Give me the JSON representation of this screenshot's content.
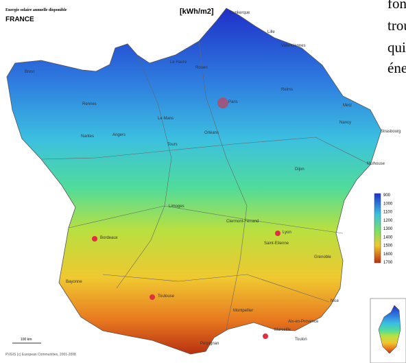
{
  "header": {
    "subtitle": "Energie solaire annuelle disponible",
    "title": "FRANCE",
    "unit": "[kWh/m2]"
  },
  "legend": {
    "ticks": [
      900,
      1000,
      1100,
      1200,
      1300,
      1400,
      1500,
      1600,
      1700
    ]
  },
  "cities": [
    "Dunkerque",
    "Lille",
    "Valenciennes",
    "Le Havre",
    "Rouen",
    "Brest",
    "Rennes",
    "Le Mans",
    "Paris",
    "Reims",
    "Metz",
    "Nancy",
    "Strasbourg",
    "Mulhouse",
    "Nantes",
    "Angers",
    "Tours",
    "Orléans",
    "Dijon",
    "Limoges",
    "Clermont-Ferrand",
    "Lyon",
    "Saint-Etienne",
    "Grenoble",
    "Bordeaux",
    "Bayonne",
    "Toulouse",
    "Montpellier",
    "Aix-en-Provence",
    "Marseille",
    "Toulon",
    "Nice",
    "Perpignan"
  ],
  "scale": "100 km",
  "credit": "PVGIS (c) European Communities, 2001-2008",
  "side_text": [
    "fond",
    "trou",
    "qui",
    "éne"
  ]
}
